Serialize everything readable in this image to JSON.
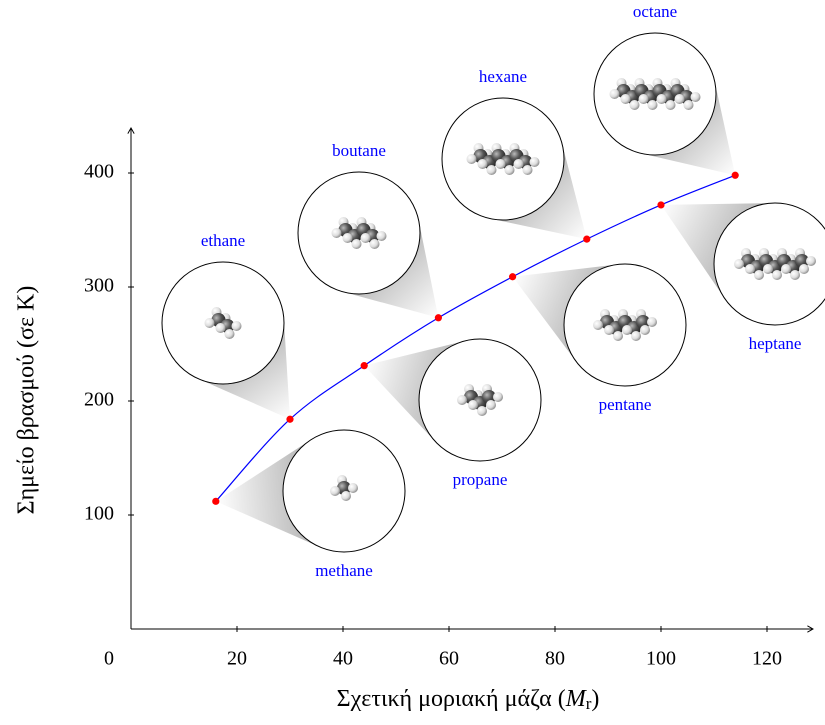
{
  "chart_data": {
    "type": "line",
    "x_label": [
      "Σχετική μοριακή μάζα (",
      "M",
      "r",
      ")"
    ],
    "y_label": "Σημείο βρασμού (σε K)",
    "x": [
      16,
      30,
      44,
      58,
      72,
      86,
      100,
      114
    ],
    "series": [
      {
        "color": "#0000ff",
        "marker_color": "#ff0000",
        "values": [
          112,
          184,
          231,
          273,
          309,
          342,
          372,
          398
        ],
        "labels": [
          "methane",
          "ethane",
          "propane",
          "boutane",
          "pentane",
          "hexane",
          "heptane",
          "octane"
        ],
        "label_color": "#0000ff"
      }
    ],
    "xlim": [
      0,
      128
    ],
    "ylim": [
      0,
      438
    ],
    "xticks": [
      0,
      20,
      40,
      60,
      80,
      100,
      120
    ],
    "yticks": [
      100,
      200,
      300,
      400
    ]
  }
}
